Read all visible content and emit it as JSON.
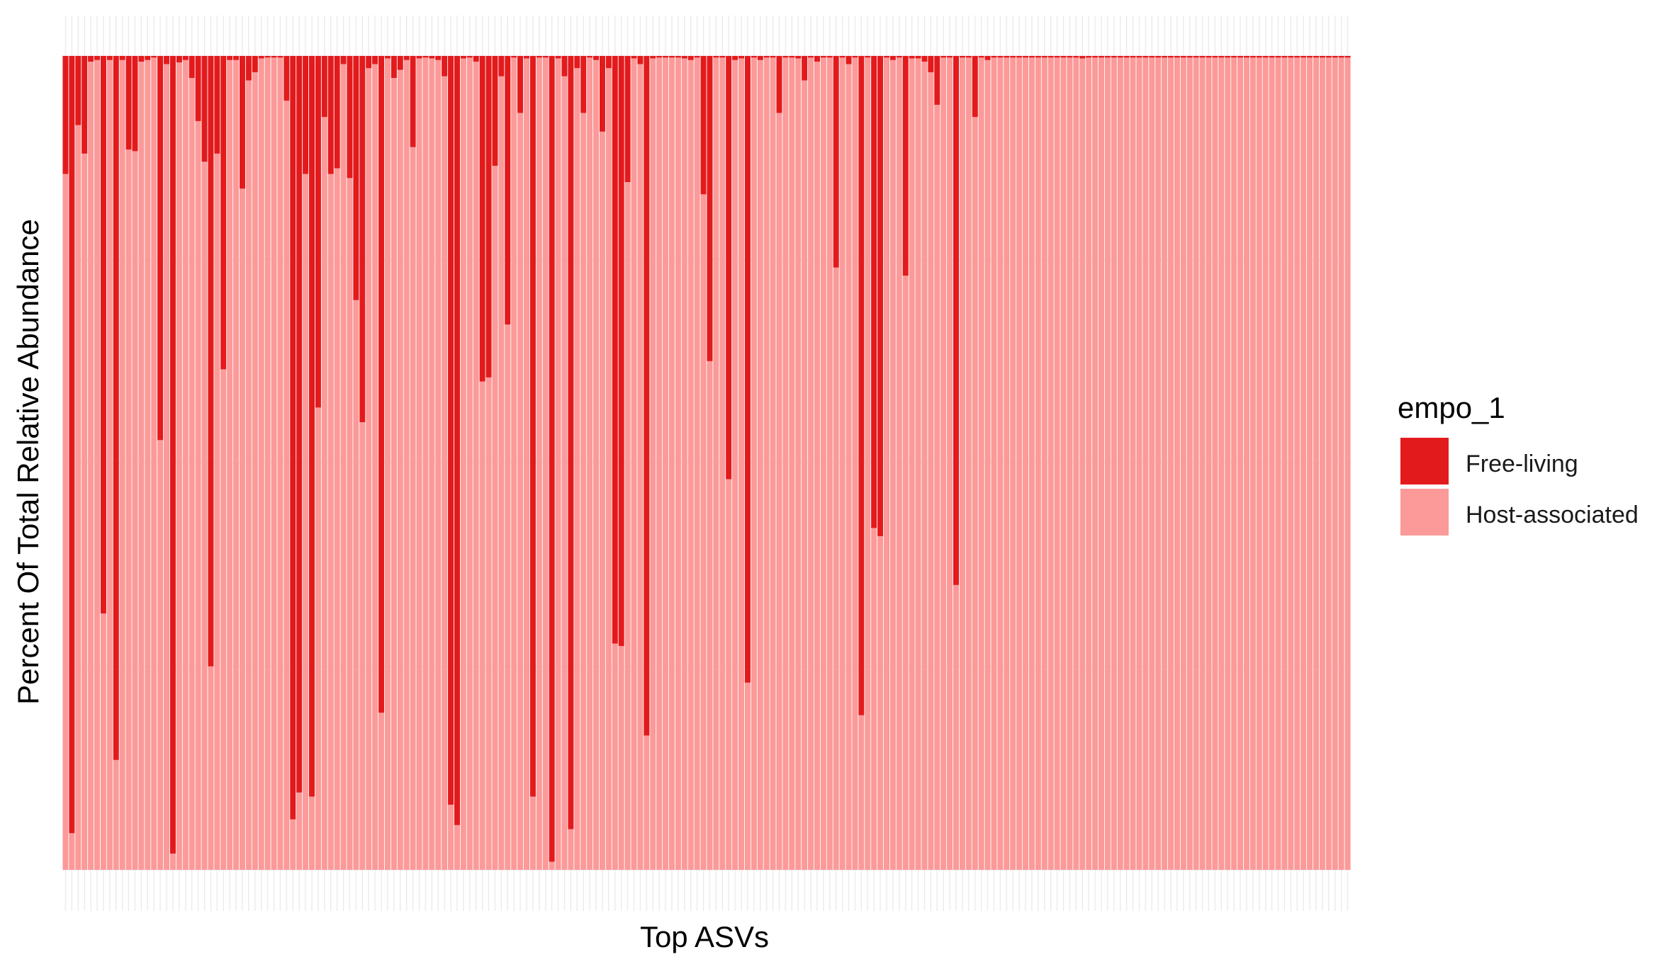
{
  "chart_data": {
    "type": "bar",
    "stacked": "percent",
    "xlabel": "Top ASVs",
    "ylabel": "Percent Of Total Relative Abundance",
    "x_tick_labels_shown": false,
    "y_tick_labels_shown": false,
    "ylim": [
      0,
      1
    ],
    "grid": true,
    "legend": {
      "title": "empo_1",
      "position": "right"
    },
    "series": [
      {
        "name": "Free-living",
        "color": "#E31A1C"
      },
      {
        "name": "Host-associated",
        "color": "#FB9A99"
      }
    ],
    "bar_count": 198,
    "free_living_fraction": [
      0.145,
      0.955,
      0.085,
      0.12,
      0.007,
      0.005,
      0.685,
      0.005,
      0.865,
      0.005,
      0.115,
      0.117,
      0.007,
      0.005,
      0.002,
      0.472,
      0.01,
      0.98,
      0.008,
      0.005,
      0.027,
      0.08,
      0.13,
      0.75,
      0.12,
      0.385,
      0.005,
      0.005,
      0.163,
      0.03,
      0.02,
      0.003,
      0.002,
      0.002,
      0.002,
      0.055,
      0.938,
      0.905,
      0.145,
      0.91,
      0.432,
      0.075,
      0.145,
      0.138,
      0.01,
      0.15,
      0.3,
      0.45,
      0.015,
      0.01,
      0.807,
      0.003,
      0.027,
      0.017,
      0.005,
      0.112,
      0.003,
      0.002,
      0.003,
      0.005,
      0.025,
      0.92,
      0.945,
      0.003,
      0.002,
      0.007,
      0.4,
      0.395,
      0.135,
      0.025,
      0.33,
      0.002,
      0.07,
      0.003,
      0.91,
      0.002,
      0.002,
      0.99,
      0.003,
      0.025,
      0.95,
      0.015,
      0.07,
      0.002,
      0.005,
      0.093,
      0.015,
      0.722,
      0.725,
      0.155,
      0.003,
      0.01,
      0.835,
      0.003,
      0.002,
      0.002,
      0.002,
      0.002,
      0.003,
      0.005,
      0.002,
      0.17,
      0.375,
      0.002,
      0.002,
      0.52,
      0.005,
      0.003,
      0.77,
      0.002,
      0.005,
      0.002,
      0.002,
      0.07,
      0.002,
      0.002,
      0.003,
      0.03,
      0.002,
      0.007,
      0.002,
      0.002,
      0.26,
      0.002,
      0.01,
      0.002,
      0.81,
      0.002,
      0.58,
      0.59,
      0.002,
      0.005,
      0.002,
      0.27,
      0.003,
      0.003,
      0.007,
      0.02,
      0.06,
      0.002,
      0.002,
      0.65,
      0.002,
      0.002,
      0.075,
      0.002,
      0.005,
      0.002,
      0.002,
      0.002,
      0.002,
      0.002,
      0.002,
      0.002,
      0.002,
      0.002,
      0.002,
      0.002,
      0.002,
      0.002,
      0.002,
      0.003,
      0.002,
      0.002,
      0.002,
      0.002,
      0.002,
      0.002,
      0.002,
      0.002,
      0.002,
      0.002,
      0.002,
      0.002,
      0.002,
      0.002,
      0.002,
      0.002,
      0.002,
      0.002,
      0.002,
      0.002,
      0.002,
      0.002,
      0.002,
      0.002,
      0.002,
      0.002,
      0.002,
      0.002,
      0.002,
      0.002,
      0.002,
      0.002,
      0.002,
      0.002,
      0.002,
      0.002,
      0.002,
      0.002,
      0.002,
      0.002,
      0.002,
      0.002
    ]
  }
}
